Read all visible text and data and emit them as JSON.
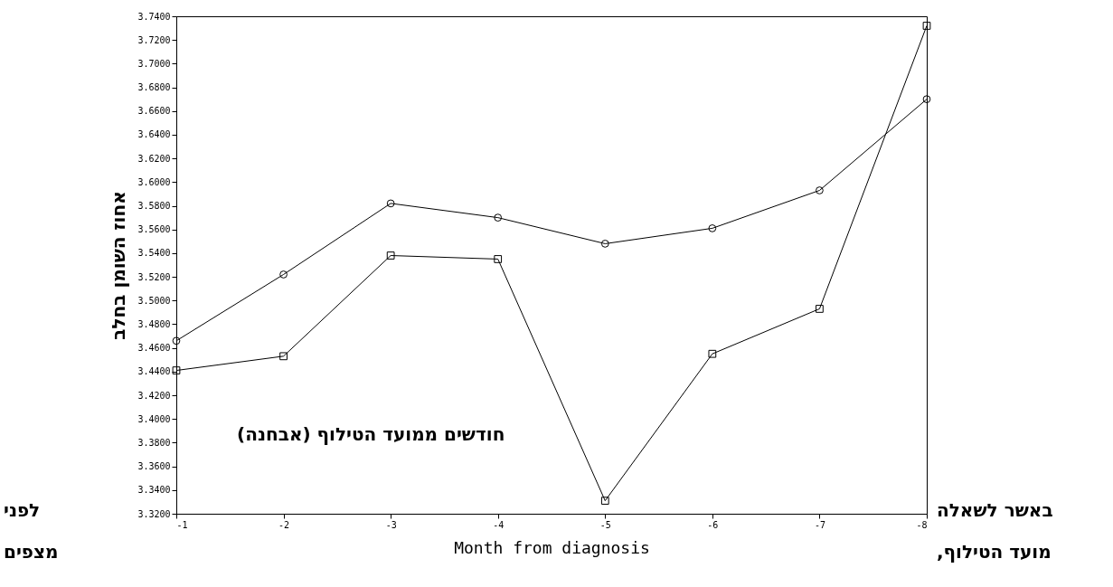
{
  "chart_data": {
    "type": "line",
    "categories": [
      "-1",
      "-2",
      "-3",
      "-4",
      "-5",
      "-6",
      "-7",
      "-8"
    ],
    "series": [
      {
        "color": "#000000",
        "marker": "circle",
        "values": [
          3.466,
          3.522,
          3.582,
          3.57,
          3.548,
          3.561,
          3.593,
          3.67
        ]
      },
      {
        "color": "#000000",
        "marker": "square",
        "values": [
          3.441,
          3.453,
          3.538,
          3.535,
          3.331,
          3.455,
          3.493,
          3.732
        ]
      }
    ],
    "xlabel": "Month from diagnosis",
    "ylabel": "אחוז השומן בחלב",
    "ylim": [
      3.32,
      3.74
    ],
    "yticks": [
      {
        "value": 3.32,
        "label": "3.3200"
      },
      {
        "value": 3.34,
        "label": "3.3400"
      },
      {
        "value": 3.36,
        "label": "3.3600"
      },
      {
        "value": 3.38,
        "label": "3.3800"
      },
      {
        "value": 3.4,
        "label": "3.4000"
      },
      {
        "value": 3.42,
        "label": "3.4200"
      },
      {
        "value": 3.44,
        "label": "3.4400"
      },
      {
        "value": 3.46,
        "label": "3.4600"
      },
      {
        "value": 3.48,
        "label": "3.4800"
      },
      {
        "value": 3.5,
        "label": "3.5000"
      },
      {
        "value": 3.52,
        "label": "3.5200"
      },
      {
        "value": 3.54,
        "label": "3.5400"
      },
      {
        "value": 3.56,
        "label": "3.5600"
      },
      {
        "value": 3.58,
        "label": "3.5800"
      },
      {
        "value": 3.6,
        "label": "3.6000"
      },
      {
        "value": 3.62,
        "label": "3.6200"
      },
      {
        "value": 3.64,
        "label": "3.6400"
      },
      {
        "value": 3.66,
        "label": "3.6600"
      },
      {
        "value": 3.68,
        "label": "3.6800"
      },
      {
        "value": 3.7,
        "label": "3.7000"
      },
      {
        "value": 3.72,
        "label": "3.7200"
      },
      {
        "value": 3.74,
        "label": "3.7400"
      }
    ],
    "annotations": [
      "חודשים ממועד הטילוף (אבחנה)",
      "באשר לשאלה",
      "לפני",
      "מועד הטילוף,",
      "מצפים"
    ],
    "grid": false,
    "line_style": "solid"
  }
}
